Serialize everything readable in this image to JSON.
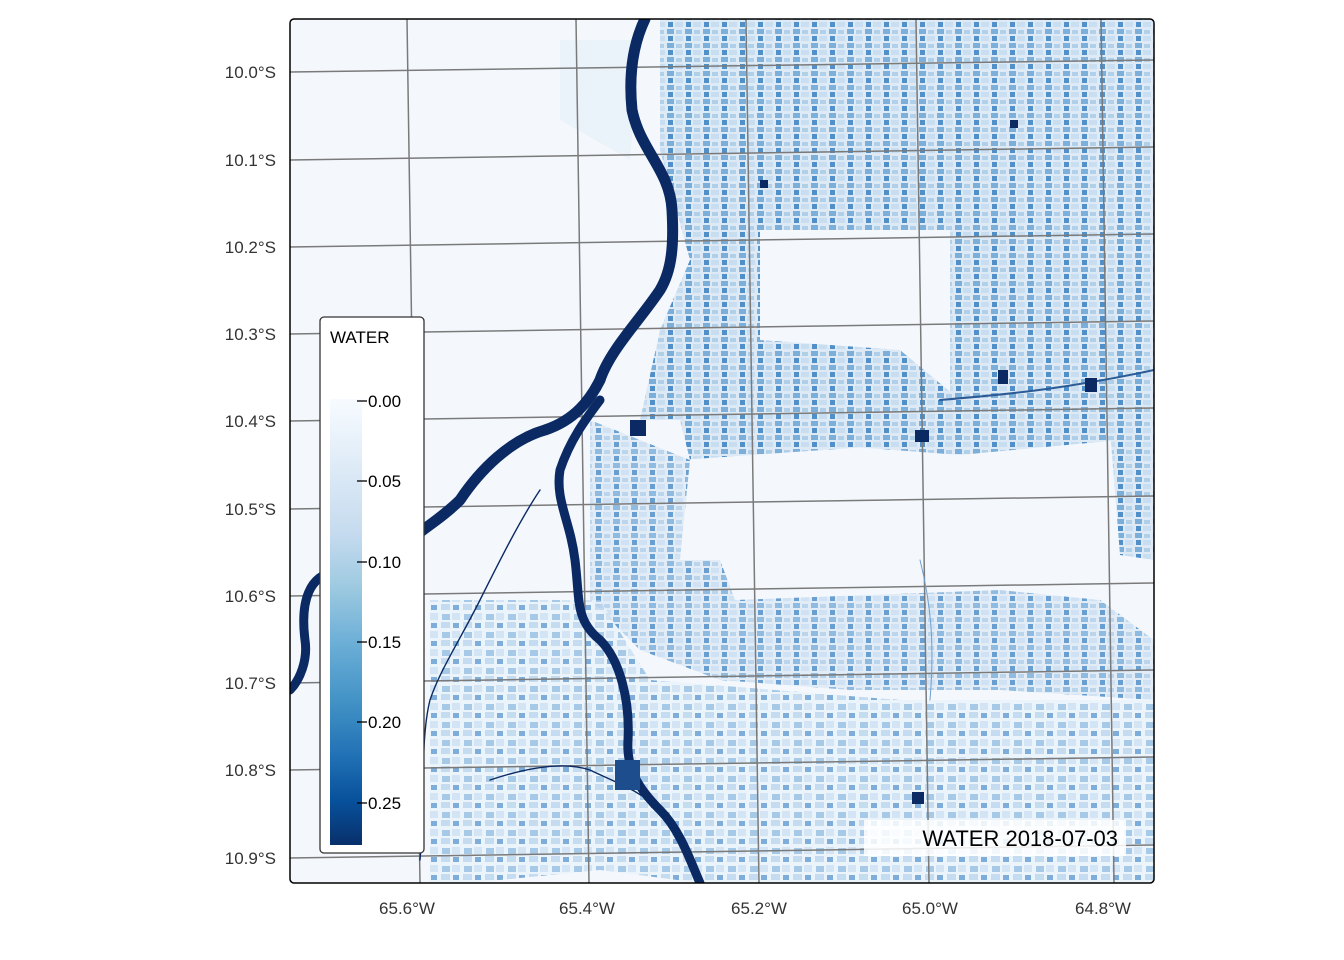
{
  "map": {
    "title": "WATER 2018-07-03",
    "x_ticks": [
      "65.6°W",
      "65.4°W",
      "65.2°W",
      "65.0°W",
      "64.8°W"
    ],
    "y_ticks": [
      "10.0°S",
      "10.1°S",
      "10.2°S",
      "10.3°S",
      "10.4°S",
      "10.5°S",
      "10.6°S",
      "10.7°S",
      "10.8°S",
      "10.9°S"
    ]
  },
  "legend": {
    "title": "WATER",
    "ticks": [
      "0.00",
      "0.05",
      "0.10",
      "0.15",
      "0.20",
      "0.25"
    ],
    "colors": [
      "#f7fbff",
      "#deebf7",
      "#c6dbef",
      "#9ecae1",
      "#6baed6",
      "#4292c6",
      "#2171b5",
      "#08519c",
      "#08306b"
    ]
  },
  "colors": {
    "background": "#f4f8fd",
    "river": "#0b2a63",
    "grid": "#7a7a7a",
    "frame": "#000000"
  }
}
